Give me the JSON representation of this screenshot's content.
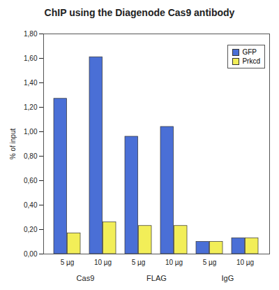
{
  "chart_data": {
    "type": "bar",
    "title": "ChIP using the Diagenode Cas9 antibody",
    "categories": [
      "5 µg",
      "10 µg",
      "5 µg",
      "10 µg",
      "5 µg",
      "10 µg"
    ],
    "groups": [
      "Cas9",
      "Cas9",
      "FLAG",
      "FLAG",
      "IgG",
      "IgG"
    ],
    "series": [
      {
        "name": "GFP",
        "color": "#4a6fd6",
        "values": [
          1.27,
          1.61,
          0.96,
          1.04,
          0.1,
          0.13
        ]
      },
      {
        "name": "Prkcd",
        "color": "#f2ee58",
        "values": [
          0.17,
          0.26,
          0.23,
          0.23,
          0.1,
          0.13
        ]
      }
    ],
    "ylabel": "% of input",
    "ylim": [
      0,
      1.8
    ],
    "yticks": [
      {
        "value": 0,
        "label": "0,00"
      },
      {
        "value": 0.2,
        "label": "0,20"
      },
      {
        "value": 0.4,
        "label": "0,40"
      },
      {
        "value": 0.6,
        "label": "0,60"
      },
      {
        "value": 0.8,
        "label": "0,80"
      },
      {
        "value": 1.0,
        "label": "1,00"
      },
      {
        "value": 1.2,
        "label": "1,20"
      },
      {
        "value": 1.4,
        "label": "1,40"
      },
      {
        "value": 1.6,
        "label": "1,60"
      },
      {
        "value": 1.8,
        "label": "1,80"
      }
    ],
    "legend": "top-right",
    "grid": false
  }
}
